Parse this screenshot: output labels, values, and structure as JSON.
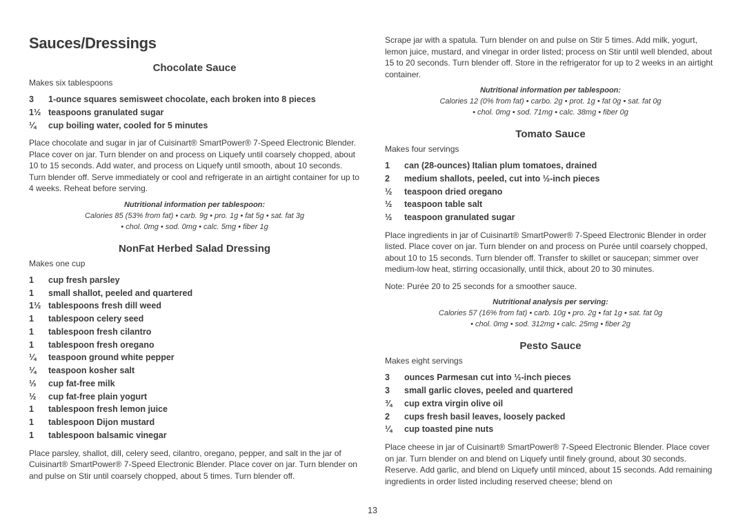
{
  "sectionTitle": "Sauces/Dressings",
  "pageNumber": "13",
  "leftCol": {
    "recipes": [
      {
        "title": "Chocolate Sauce",
        "makes": "Makes six tablespoons",
        "ingredients": [
          {
            "qty": "3",
            "item": "1-ounce squares semisweet chocolate, each broken into 8 pieces"
          },
          {
            "qty": "1½",
            "item": "teaspoons granulated sugar"
          },
          {
            "qty": "¼",
            "item": "cup boiling water, cooled for 5 minutes"
          }
        ],
        "instructions": "Place chocolate and sugar in jar of Cuisinart® SmartPower® 7-Speed Electronic Blender. Place cover on jar. Turn blender on and process on Liquefy until coarsely chopped, about 10 to 15 seconds. Add water, and process on Liquefy until smooth, about 10 seconds. Turn blender off. Serve immediately or cool and refrigerate in an airtight container for up to 4 weeks. Reheat before serving.",
        "nutriHead": "Nutritional information per tablespoon:",
        "nutriL1": "Calories 85 (53% from fat) • carb. 9g • pro. 1g • fat 5g • sat. fat 3g",
        "nutriL2": "• chol. 0mg • sod. 0mg • calc. 5mg • fiber 1g"
      },
      {
        "title": "NonFat Herbed Salad Dressing",
        "makes": "Makes one cup",
        "ingredients": [
          {
            "qty": "1",
            "item": "cup fresh parsley"
          },
          {
            "qty": "1",
            "item": "small shallot, peeled and quartered"
          },
          {
            "qty": "1½",
            "item": "tablespoons fresh dill weed"
          },
          {
            "qty": "1",
            "item": "tablespoon celery seed"
          },
          {
            "qty": "1",
            "item": "tablespoon fresh cilantro"
          },
          {
            "qty": "1",
            "item": "tablespoon fresh oregano"
          },
          {
            "qty": "¼",
            "item": "teaspoon ground white pepper"
          },
          {
            "qty": "¼",
            "item": "teaspoon kosher salt"
          },
          {
            "qty": "⅓",
            "item": "cup fat-free milk"
          },
          {
            "qty": "½",
            "item": "cup fat-free plain yogurt"
          },
          {
            "qty": "1",
            "item": "tablespoon fresh lemon juice"
          },
          {
            "qty": "1",
            "item": "tablespoon Dijon mustard"
          },
          {
            "qty": "1",
            "item": "tablespoon balsamic vinegar"
          }
        ],
        "instructions": "Place parsley, shallot, dill, celery seed, cilantro, oregano, pepper, and salt in the jar of Cuisinart® SmartPower® 7-Speed Electronic Blender. Place cover on jar. Turn blender on and pulse on Stir until coarsely chopped, about 5 times. Turn blender off."
      }
    ]
  },
  "rightCol": {
    "leadInstructions": "Scrape jar with a spatula. Turn blender on and pulse on Stir 5 times. Add milk, yogurt, lemon juice, mustard, and vinegar in order listed; process on Stir until well blended, about 15 to 20 seconds. Turn blender off. Store in the refrigerator for up to 2 weeks in an airtight container.",
    "leadNutriHead": "Nutritional information per tablespoon:",
    "leadNutriL1": "Calories 12 (0% from fat) • carbo. 2g • prot. 1g • fat 0g • sat. fat 0g",
    "leadNutriL2": "• chol. 0mg • sod. 71mg • calc. 38mg • fiber 0g",
    "recipes": [
      {
        "title": "Tomato Sauce",
        "makes": "Makes four servings",
        "ingredients": [
          {
            "qty": "1",
            "item": "can (28-ounces) Italian plum tomatoes, drained"
          },
          {
            "qty": "2",
            "item": "medium shallots, peeled, cut into ½-inch pieces"
          },
          {
            "qty": "½",
            "item": "teaspoon dried oregano"
          },
          {
            "qty": "½",
            "item": "teaspoon table salt"
          },
          {
            "qty": "½",
            "item": "teaspoon granulated sugar"
          }
        ],
        "instructions": "Place ingredients in jar of Cuisinart® SmartPower® 7-Speed Electronic Blender in order listed. Place cover on jar. Turn blender on and process on Purée until coarsely chopped, about 10 to 15 seconds. Turn blender off. Transfer to skillet or saucepan; simmer over medium-low heat, stirring occasionally, until thick, about 20 to 30 minutes.",
        "note": "Note: Purée 20 to 25 seconds for a smoother sauce.",
        "nutriHead": "Nutritional analysis per serving:",
        "nutriL1": "Calories 57 (16% from fat) • carb. 10g • pro. 2g • fat 1g • sat. fat 0g",
        "nutriL2": "• chol. 0mg • sod. 312mg • calc. 25mg • fiber 2g"
      },
      {
        "title": "Pesto Sauce",
        "makes": "Makes eight servings",
        "ingredients": [
          {
            "qty": "3",
            "item": "ounces Parmesan cut into ½-inch pieces"
          },
          {
            "qty": "3",
            "item": "small garlic cloves, peeled and quartered"
          },
          {
            "qty": "¾",
            "item": "cup extra virgin olive oil"
          },
          {
            "qty": "2",
            "item": "cups fresh basil leaves, loosely packed"
          },
          {
            "qty": "¼",
            "item": "cup toasted pine nuts"
          }
        ],
        "instructions": "Place cheese in jar of Cuisinart® SmartPower® 7-Speed Electronic Blender. Place cover on jar. Turn blender on and blend on Liquefy until finely ground, about 30 seconds. Reserve. Add garlic, and blend on Liquefy until minced, about 15 seconds. Add remaining ingredients in order listed including reserved cheese; blend on"
      }
    ]
  }
}
